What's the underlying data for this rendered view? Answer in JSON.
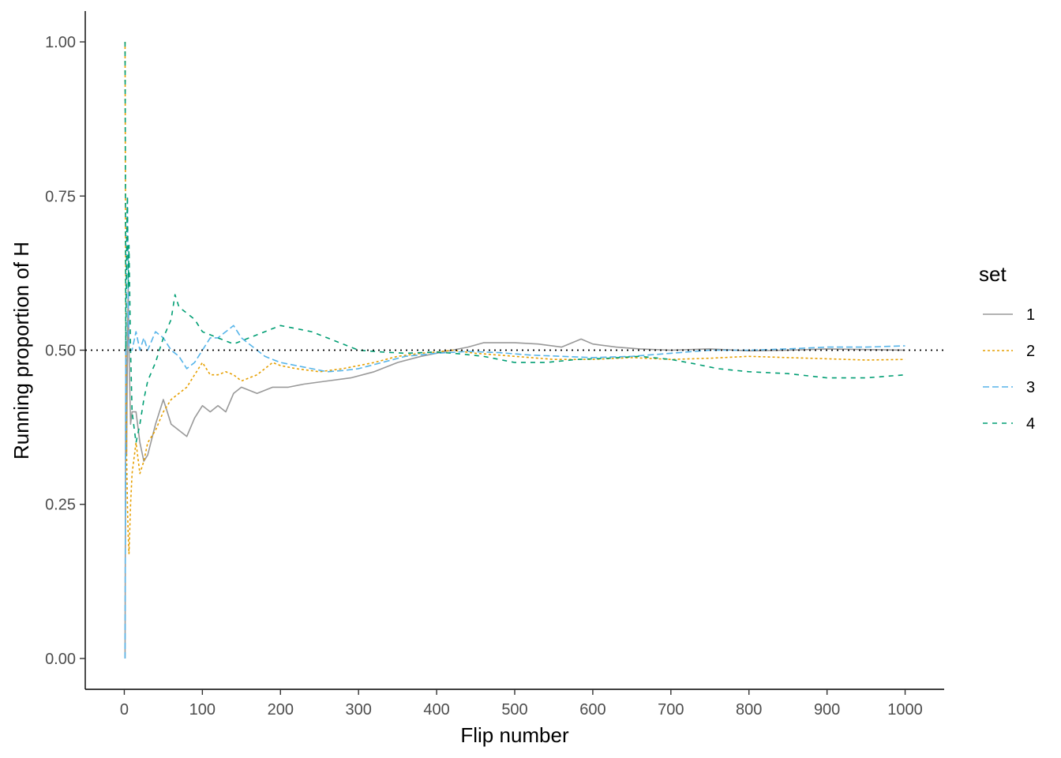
{
  "chart_data": {
    "type": "line",
    "title": "",
    "xlabel": "Flip number",
    "ylabel": "Running proportion of H",
    "xlim": [
      -50,
      1050
    ],
    "ylim": [
      -0.05,
      1.05
    ],
    "x_ticks": [
      0,
      100,
      200,
      300,
      400,
      500,
      600,
      700,
      800,
      900,
      1000
    ],
    "x_tick_labels": [
      "0",
      "100",
      "200",
      "300",
      "400",
      "500",
      "600",
      "700",
      "800",
      "900",
      "1000"
    ],
    "y_ticks": [
      0,
      0.25,
      0.5,
      0.75,
      1.0
    ],
    "y_tick_labels": [
      "0.00",
      "0.25",
      "0.50",
      "0.75",
      "1.00"
    ],
    "reference_line": {
      "y": 0.5,
      "style": "dotted",
      "color": "#000000"
    },
    "grid": false,
    "legend": {
      "title": "set",
      "position": "right"
    },
    "series": [
      {
        "name": "1",
        "color": "#999999",
        "dash": "solid",
        "points": [
          [
            1,
            0
          ],
          [
            2,
            0.5
          ],
          [
            3,
            0.33
          ],
          [
            4,
            0.5
          ],
          [
            5,
            0.6
          ],
          [
            6,
            0.5
          ],
          [
            8,
            0.38
          ],
          [
            10,
            0.4
          ],
          [
            15,
            0.4
          ],
          [
            20,
            0.35
          ],
          [
            25,
            0.32
          ],
          [
            30,
            0.33
          ],
          [
            40,
            0.38
          ],
          [
            50,
            0.42
          ],
          [
            55,
            0.4
          ],
          [
            60,
            0.38
          ],
          [
            70,
            0.37
          ],
          [
            80,
            0.36
          ],
          [
            90,
            0.39
          ],
          [
            100,
            0.41
          ],
          [
            110,
            0.4
          ],
          [
            120,
            0.41
          ],
          [
            130,
            0.4
          ],
          [
            140,
            0.43
          ],
          [
            150,
            0.44
          ],
          [
            170,
            0.43
          ],
          [
            190,
            0.44
          ],
          [
            210,
            0.44
          ],
          [
            230,
            0.445
          ],
          [
            260,
            0.45
          ],
          [
            290,
            0.455
          ],
          [
            320,
            0.465
          ],
          [
            350,
            0.48
          ],
          [
            380,
            0.49
          ],
          [
            400,
            0.495
          ],
          [
            420,
            0.5
          ],
          [
            440,
            0.505
          ],
          [
            460,
            0.512
          ],
          [
            500,
            0.512
          ],
          [
            530,
            0.51
          ],
          [
            560,
            0.505
          ],
          [
            585,
            0.518
          ],
          [
            600,
            0.51
          ],
          [
            630,
            0.505
          ],
          [
            660,
            0.502
          ],
          [
            700,
            0.5
          ],
          [
            750,
            0.502
          ],
          [
            800,
            0.499
          ],
          [
            850,
            0.5
          ],
          [
            900,
            0.502
          ],
          [
            950,
            0.501
          ],
          [
            1000,
            0.5
          ]
        ]
      },
      {
        "name": "2",
        "color": "#E69F00",
        "dash": "dotted",
        "points": [
          [
            1,
            1
          ],
          [
            2,
            0.5
          ],
          [
            3,
            0.33
          ],
          [
            4,
            0.25
          ],
          [
            5,
            0.2
          ],
          [
            6,
            0.17
          ],
          [
            8,
            0.25
          ],
          [
            10,
            0.3
          ],
          [
            15,
            0.35
          ],
          [
            20,
            0.3
          ],
          [
            25,
            0.32
          ],
          [
            30,
            0.35
          ],
          [
            40,
            0.37
          ],
          [
            50,
            0.4
          ],
          [
            60,
            0.42
          ],
          [
            70,
            0.43
          ],
          [
            80,
            0.44
          ],
          [
            90,
            0.46
          ],
          [
            100,
            0.48
          ],
          [
            110,
            0.46
          ],
          [
            120,
            0.46
          ],
          [
            130,
            0.465
          ],
          [
            140,
            0.46
          ],
          [
            150,
            0.45
          ],
          [
            160,
            0.455
          ],
          [
            170,
            0.46
          ],
          [
            180,
            0.47
          ],
          [
            190,
            0.48
          ],
          [
            200,
            0.475
          ],
          [
            220,
            0.47
          ],
          [
            250,
            0.465
          ],
          [
            280,
            0.47
          ],
          [
            300,
            0.475
          ],
          [
            320,
            0.48
          ],
          [
            350,
            0.49
          ],
          [
            380,
            0.495
          ],
          [
            400,
            0.497
          ],
          [
            420,
            0.5
          ],
          [
            450,
            0.495
          ],
          [
            500,
            0.49
          ],
          [
            550,
            0.485
          ],
          [
            600,
            0.485
          ],
          [
            650,
            0.488
          ],
          [
            700,
            0.485
          ],
          [
            750,
            0.487
          ],
          [
            800,
            0.49
          ],
          [
            850,
            0.488
          ],
          [
            900,
            0.486
          ],
          [
            950,
            0.484
          ],
          [
            1000,
            0.485
          ]
        ]
      },
      {
        "name": "3",
        "color": "#56B4E9",
        "dash": "dashed",
        "points": [
          [
            1,
            0
          ],
          [
            2,
            0.5
          ],
          [
            3,
            0.67
          ],
          [
            4,
            0.75
          ],
          [
            5,
            0.6
          ],
          [
            6,
            0.5
          ],
          [
            8,
            0.5
          ],
          [
            10,
            0.5
          ],
          [
            15,
            0.53
          ],
          [
            20,
            0.5
          ],
          [
            25,
            0.52
          ],
          [
            30,
            0.5
          ],
          [
            40,
            0.53
          ],
          [
            50,
            0.52
          ],
          [
            60,
            0.5
          ],
          [
            70,
            0.49
          ],
          [
            80,
            0.47
          ],
          [
            90,
            0.48
          ],
          [
            100,
            0.5
          ],
          [
            110,
            0.52
          ],
          [
            120,
            0.52
          ],
          [
            130,
            0.53
          ],
          [
            140,
            0.54
          ],
          [
            150,
            0.52
          ],
          [
            160,
            0.51
          ],
          [
            170,
            0.5
          ],
          [
            180,
            0.49
          ],
          [
            190,
            0.485
          ],
          [
            200,
            0.48
          ],
          [
            220,
            0.475
          ],
          [
            240,
            0.47
          ],
          [
            260,
            0.465
          ],
          [
            280,
            0.467
          ],
          [
            300,
            0.47
          ],
          [
            330,
            0.48
          ],
          [
            360,
            0.49
          ],
          [
            400,
            0.495
          ],
          [
            440,
            0.498
          ],
          [
            480,
            0.496
          ],
          [
            520,
            0.492
          ],
          [
            560,
            0.49
          ],
          [
            600,
            0.488
          ],
          [
            650,
            0.49
          ],
          [
            700,
            0.495
          ],
          [
            750,
            0.5
          ],
          [
            800,
            0.5
          ],
          [
            850,
            0.502
          ],
          [
            900,
            0.505
          ],
          [
            950,
            0.505
          ],
          [
            1000,
            0.507
          ]
        ]
      },
      {
        "name": "4",
        "color": "#009E73",
        "dash": "longdash",
        "points": [
          [
            1,
            1
          ],
          [
            2,
            0.5
          ],
          [
            3,
            0.67
          ],
          [
            4,
            0.75
          ],
          [
            5,
            0.6
          ],
          [
            6,
            0.67
          ],
          [
            8,
            0.5
          ],
          [
            10,
            0.4
          ],
          [
            15,
            0.35
          ],
          [
            20,
            0.38
          ],
          [
            25,
            0.42
          ],
          [
            30,
            0.45
          ],
          [
            40,
            0.48
          ],
          [
            50,
            0.52
          ],
          [
            60,
            0.55
          ],
          [
            65,
            0.59
          ],
          [
            70,
            0.57
          ],
          [
            80,
            0.56
          ],
          [
            90,
            0.55
          ],
          [
            100,
            0.53
          ],
          [
            120,
            0.52
          ],
          [
            140,
            0.51
          ],
          [
            160,
            0.52
          ],
          [
            180,
            0.53
          ],
          [
            200,
            0.54
          ],
          [
            220,
            0.535
          ],
          [
            240,
            0.53
          ],
          [
            260,
            0.52
          ],
          [
            280,
            0.51
          ],
          [
            300,
            0.5
          ],
          [
            330,
            0.497
          ],
          [
            360,
            0.495
          ],
          [
            400,
            0.497
          ],
          [
            430,
            0.494
          ],
          [
            460,
            0.49
          ],
          [
            500,
            0.48
          ],
          [
            540,
            0.48
          ],
          [
            580,
            0.485
          ],
          [
            620,
            0.487
          ],
          [
            660,
            0.49
          ],
          [
            700,
            0.485
          ],
          [
            730,
            0.478
          ],
          [
            760,
            0.47
          ],
          [
            800,
            0.465
          ],
          [
            850,
            0.462
          ],
          [
            900,
            0.455
          ],
          [
            950,
            0.455
          ],
          [
            1000,
            0.46
          ]
        ]
      }
    ]
  }
}
